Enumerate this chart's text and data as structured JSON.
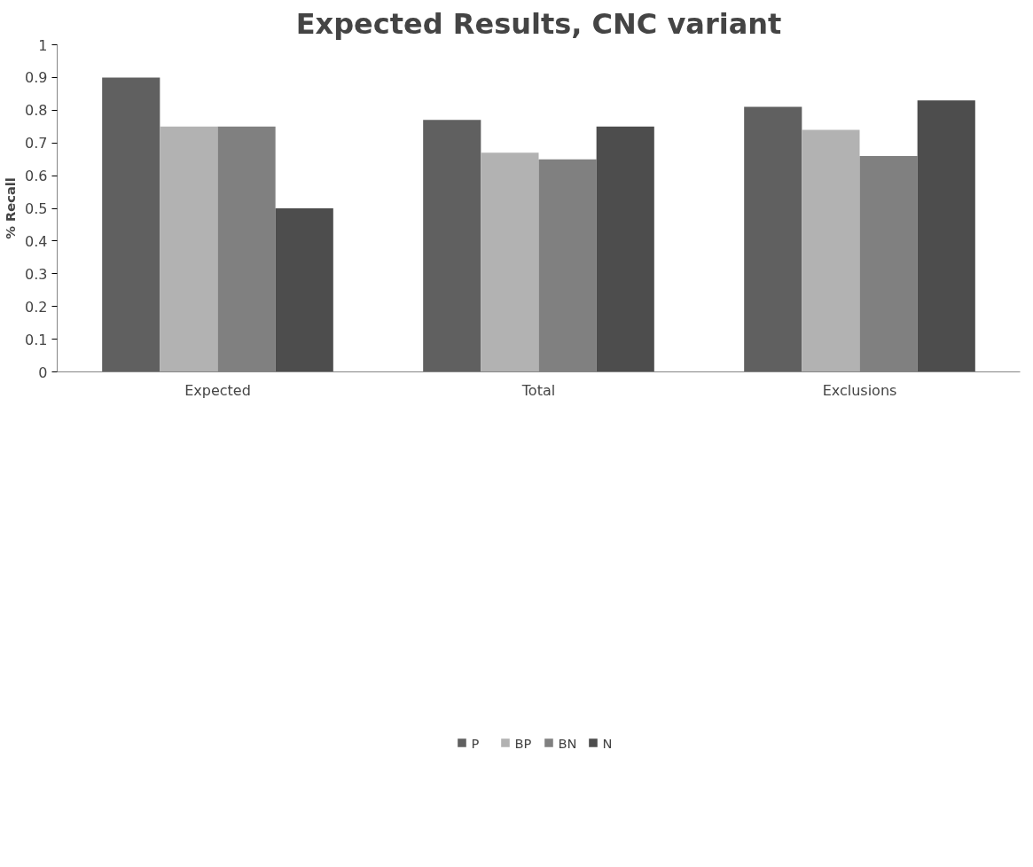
{
  "chart_data": {
    "type": "bar",
    "title": "Expected Results, CNC variant",
    "ylabel": "% Recall",
    "categories": [
      "Expected",
      "Total",
      "Exclusions"
    ],
    "series": [
      {
        "name": "P",
        "color": "#606060",
        "values": [
          0.9,
          0.77,
          0.81
        ]
      },
      {
        "name": "BP",
        "color": "#b2b2b2",
        "values": [
          0.75,
          0.67,
          0.74
        ]
      },
      {
        "name": "BN",
        "color": "#808080",
        "values": [
          0.75,
          0.65,
          0.66
        ]
      },
      {
        "name": "N",
        "color": "#4d4d4d",
        "values": [
          0.5,
          0.75,
          0.83
        ]
      }
    ],
    "ylim": [
      0,
      1
    ],
    "yticks": [
      0,
      0.1,
      0.2,
      0.3,
      0.4,
      0.5,
      0.6,
      0.7,
      0.8,
      0.9,
      1
    ],
    "grid": false,
    "legend": "bottom"
  }
}
